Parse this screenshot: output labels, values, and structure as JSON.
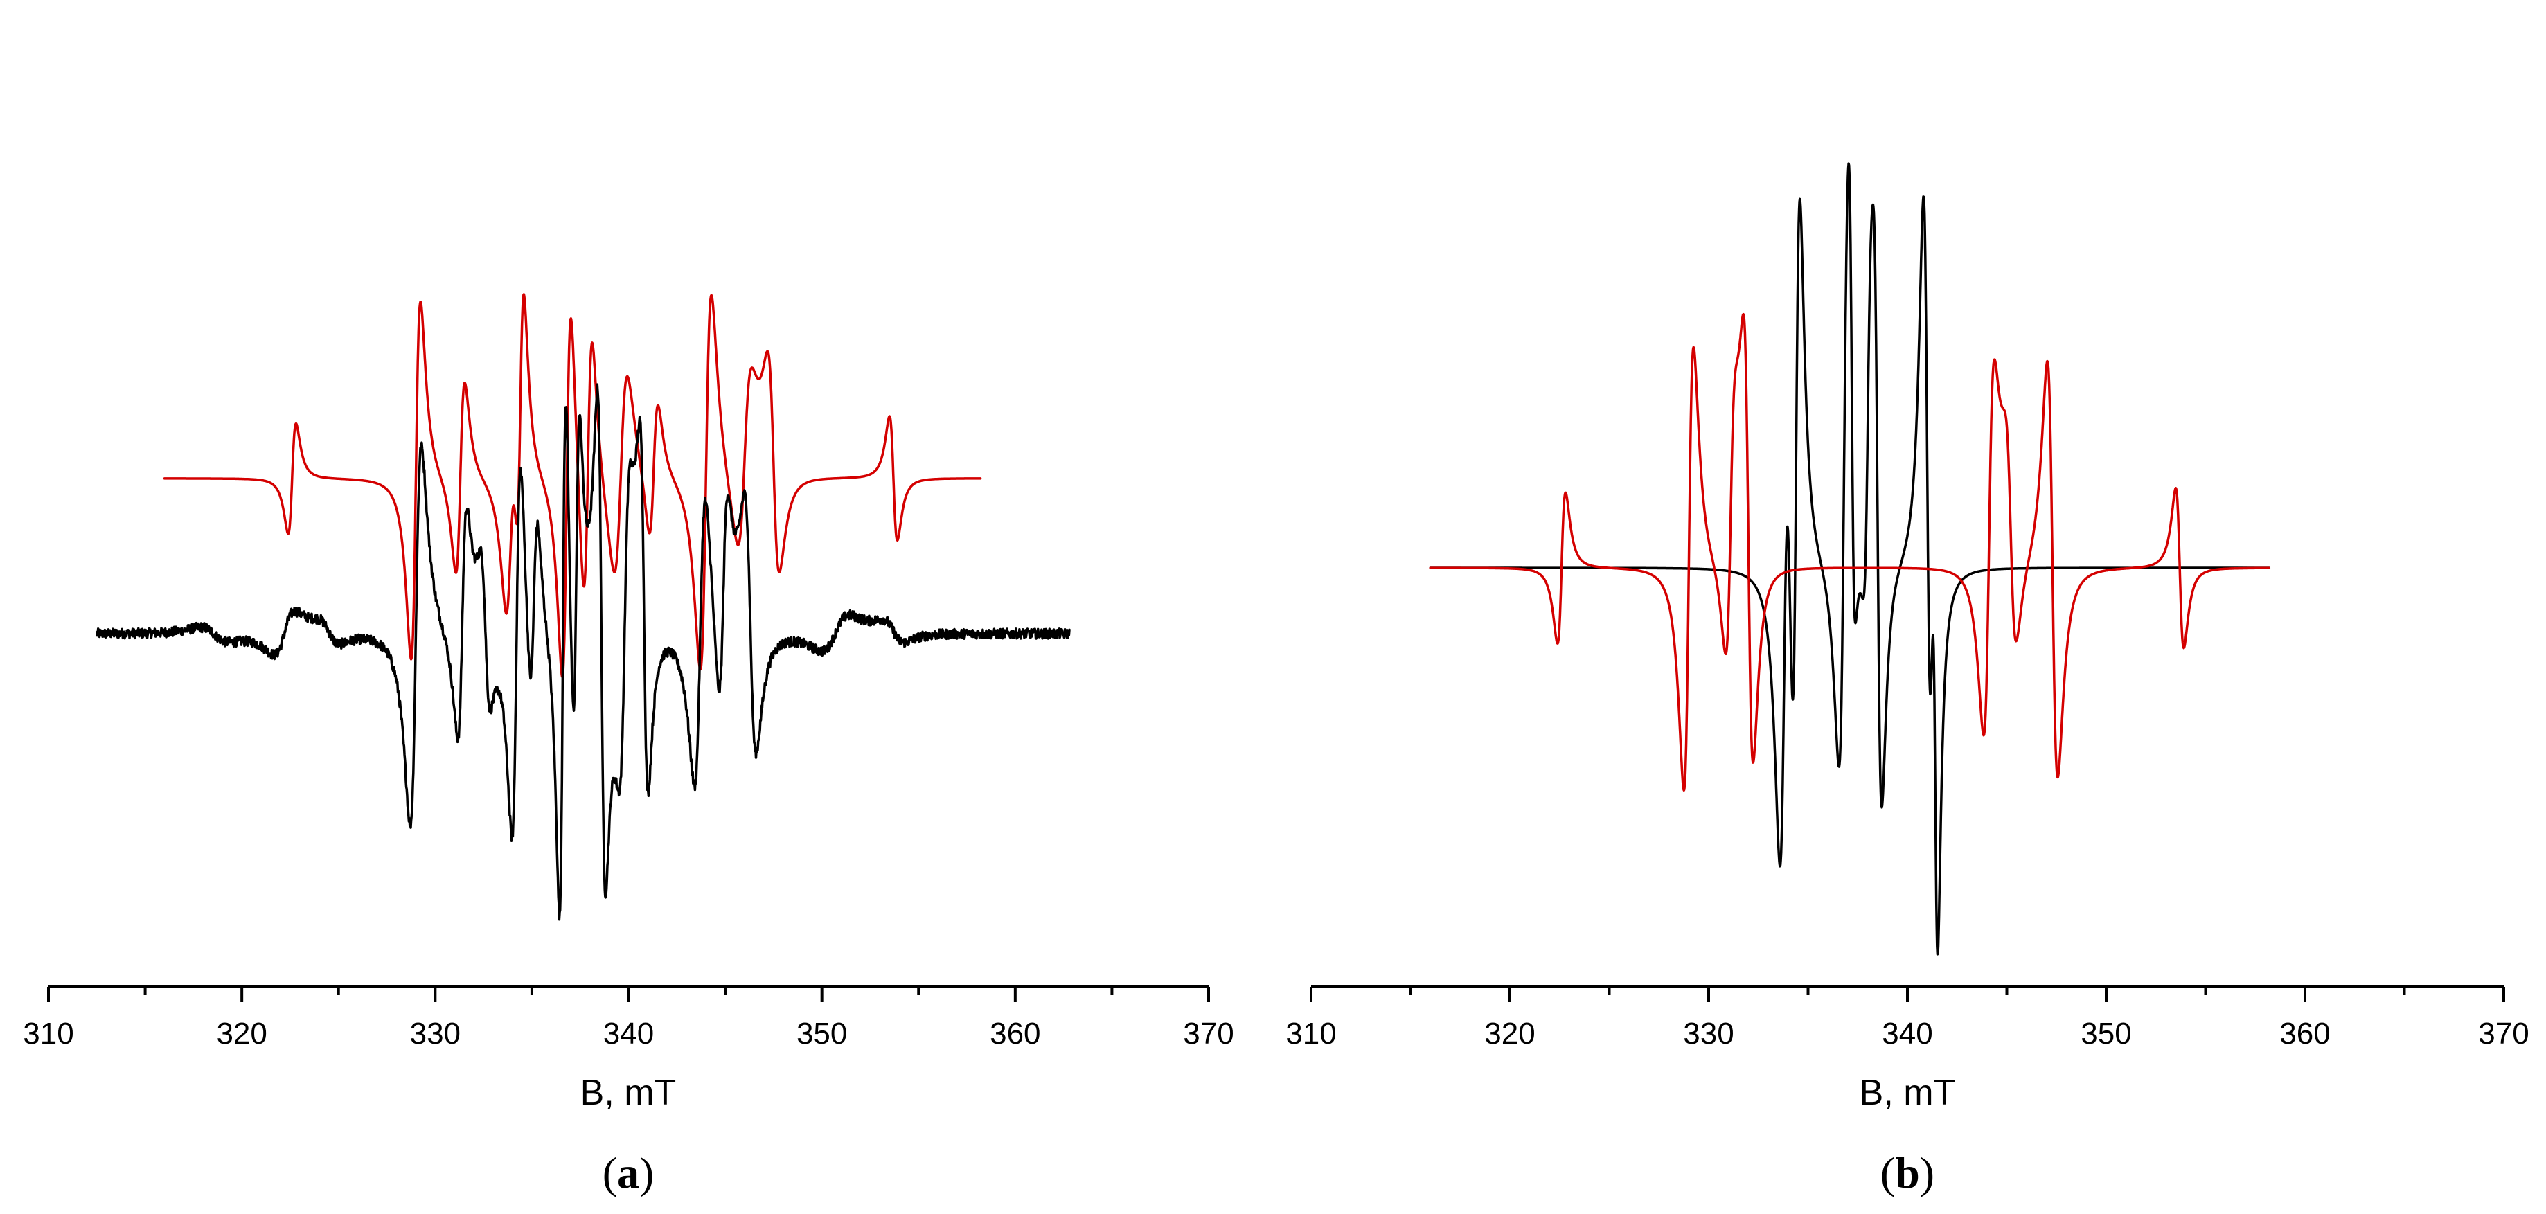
{
  "chart_data": [
    {
      "type": "line",
      "panel_label": {
        "open": "(",
        "letter": "a",
        "close": ")"
      },
      "xlabel": "B, mT",
      "ylabel": "",
      "xlim": [
        310,
        370
      ],
      "xticks": [
        310,
        320,
        330,
        340,
        350,
        360,
        370
      ],
      "grid": false,
      "series": [
        {
          "color": "#d40000",
          "offset": 0.38,
          "noise": 0,
          "x_range": [
            316,
            358.2
          ],
          "peaks": [
            {
              "x": 322.6,
              "h": 0.16,
              "w": 0.35
            },
            {
              "x": 329.0,
              "h": 0.52,
              "w": 0.42
            },
            {
              "x": 331.3,
              "h": 0.28,
              "w": 0.4
            },
            {
              "x": 333.9,
              "h": 0.3,
              "w": 0.45
            },
            {
              "x": 334.4,
              "h": 0.42,
              "w": 0.35
            },
            {
              "x": 336.8,
              "h": 0.55,
              "w": 0.4
            },
            {
              "x": 337.9,
              "h": 0.4,
              "w": 0.4
            },
            {
              "x": 339.6,
              "h": 0.3,
              "w": 0.6
            },
            {
              "x": 341.3,
              "h": 0.2,
              "w": 0.4
            },
            {
              "x": 344.0,
              "h": 0.55,
              "w": 0.5
            },
            {
              "x": 346.0,
              "h": 0.25,
              "w": 0.6
            },
            {
              "x": 347.5,
              "h": -0.3,
              "w": 0.5
            },
            {
              "x": 353.7,
              "h": -0.18,
              "w": 0.35
            }
          ]
        },
        {
          "color": "#000000",
          "offset": 0.0,
          "noise": 0.012,
          "x_range": [
            312.5,
            362.8
          ],
          "peaks": [
            {
              "x": 318.6,
              "h": -0.02,
              "w": 1.2
            },
            {
              "x": 322.2,
              "h": 0.06,
              "w": 0.9
            },
            {
              "x": 324.5,
              "h": -0.03,
              "w": 0.9
            },
            {
              "x": 329.0,
              "h": 0.55,
              "w": 0.5
            },
            {
              "x": 331.4,
              "h": 0.33,
              "w": 0.4
            },
            {
              "x": 332.6,
              "h": -0.2,
              "w": 0.4
            },
            {
              "x": 334.2,
              "h": 0.56,
              "w": 0.4
            },
            {
              "x": 335.1,
              "h": 0.28,
              "w": 0.35
            },
            {
              "x": 336.6,
              "h": 0.8,
              "w": 0.3
            },
            {
              "x": 337.3,
              "h": 0.5,
              "w": 0.3
            },
            {
              "x": 338.6,
              "h": -0.7,
              "w": 0.35
            },
            {
              "x": 339.8,
              "h": 0.4,
              "w": 0.45
            },
            {
              "x": 340.8,
              "h": -0.5,
              "w": 0.35
            },
            {
              "x": 343.7,
              "h": 0.43,
              "w": 0.5
            },
            {
              "x": 344.9,
              "h": 0.3,
              "w": 0.4
            },
            {
              "x": 346.3,
              "h": -0.36,
              "w": 0.5
            },
            {
              "x": 350.7,
              "h": 0.05,
              "w": 1.2
            },
            {
              "x": 353.7,
              "h": -0.03,
              "w": 0.9
            }
          ]
        }
      ]
    },
    {
      "type": "line",
      "panel_label": {
        "open": "(",
        "letter": "b",
        "close": ")"
      },
      "xlabel": "B, mT",
      "ylabel": "",
      "xlim": [
        310,
        370
      ],
      "xticks": [
        310,
        320,
        330,
        340,
        350,
        360,
        370
      ],
      "grid": false,
      "series": [
        {
          "color": "#000000",
          "offset": 0.0,
          "noise": 0,
          "x_range": [
            316,
            358.2
          ],
          "peaks": [
            {
              "x": 333.8,
              "h": 0.55,
              "w": 0.4
            },
            {
              "x": 334.4,
              "h": 0.7,
              "w": 0.35
            },
            {
              "x": 336.8,
              "h": 0.52,
              "w": 0.4
            },
            {
              "x": 337.2,
              "h": -0.38,
              "w": 0.25
            },
            {
              "x": 338.0,
              "h": 0.24,
              "w": 0.3
            },
            {
              "x": 338.5,
              "h": -0.6,
              "w": 0.35
            },
            {
              "x": 341.0,
              "h": -0.75,
              "w": 0.35
            },
            {
              "x": 341.4,
              "h": -0.55,
              "w": 0.25
            }
          ]
        },
        {
          "color": "#d40000",
          "offset": 0.0,
          "noise": 0,
          "x_range": [
            316,
            358.2
          ],
          "peaks": [
            {
              "x": 322.6,
              "h": 0.17,
              "w": 0.35
            },
            {
              "x": 329.0,
              "h": 0.5,
              "w": 0.42
            },
            {
              "x": 331.1,
              "h": 0.26,
              "w": 0.4
            },
            {
              "x": 332.0,
              "h": -0.47,
              "w": 0.4
            },
            {
              "x": 344.1,
              "h": 0.4,
              "w": 0.45
            },
            {
              "x": 345.2,
              "h": -0.22,
              "w": 0.45
            },
            {
              "x": 347.3,
              "h": -0.47,
              "w": 0.45
            },
            {
              "x": 353.7,
              "h": -0.18,
              "w": 0.35
            }
          ]
        }
      ]
    }
  ]
}
